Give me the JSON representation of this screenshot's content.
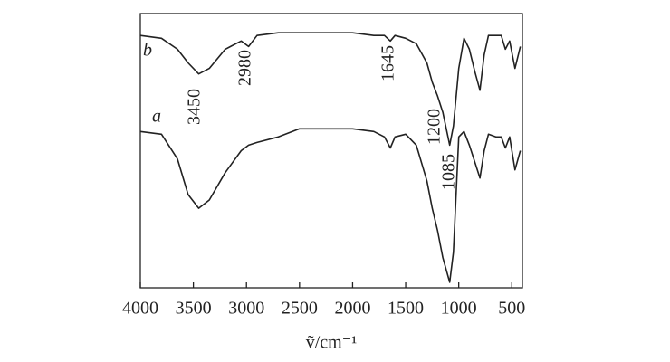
{
  "chart_data": {
    "type": "line",
    "x_label": "ṽ/cm⁻¹",
    "x": [
      4000,
      3800,
      3650,
      3550,
      3450,
      3350,
      3200,
      3050,
      2980,
      2900,
      2700,
      2500,
      2300,
      2000,
      1800,
      1700,
      1645,
      1600,
      1500,
      1400,
      1300,
      1250,
      1200,
      1150,
      1085,
      1050,
      1000,
      950,
      900,
      850,
      800,
      760,
      720,
      650,
      600,
      560,
      520,
      470,
      420
    ],
    "series": [
      {
        "name": "b",
        "color": "#222222",
        "values": [
          92,
          91,
          87,
          82,
          78,
          80,
          87,
          90,
          88,
          92,
          93,
          93,
          93,
          93,
          92,
          92,
          90,
          92,
          91,
          89,
          82,
          75,
          70,
          64,
          52,
          59,
          80,
          91,
          87,
          79,
          72,
          85,
          92,
          92,
          92,
          87,
          90,
          80,
          88
        ]
      },
      {
        "name": "a",
        "color": "#222222",
        "values": [
          57,
          56,
          47,
          34,
          29,
          32,
          42,
          50,
          52,
          53,
          55,
          58,
          58,
          58,
          57,
          55,
          51,
          55,
          56,
          52,
          39,
          29,
          21,
          11,
          2,
          13,
          55,
          57,
          52,
          46,
          40,
          50,
          56,
          55,
          55,
          51,
          55,
          43,
          50
        ]
      }
    ],
    "annotations": [
      "3450",
      "2980",
      "1645",
      "1200",
      "1085"
    ],
    "xlim": [
      4000,
      400
    ],
    "xticks": [
      4000,
      3500,
      3000,
      2500,
      2000,
      1500,
      1000,
      500
    ],
    "ylim": [
      0,
      100
    ],
    "grid": false
  }
}
